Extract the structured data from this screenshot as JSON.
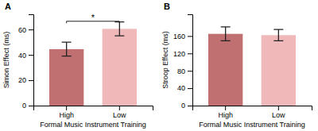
{
  "chart_data": [
    {
      "type": "bar",
      "title": "A",
      "categories": [
        "High",
        "Low"
      ],
      "values": [
        44.5,
        60.5
      ],
      "errors": [
        5.5,
        5.5
      ],
      "colors": [
        "#c07070",
        "#f0b8b8"
      ],
      "ylabel": "Simon Effect (ms)",
      "xlabel": "Formal Music Instrument Training",
      "ylim": [
        0,
        72
      ],
      "yticks": [
        0,
        20,
        40,
        60
      ],
      "annotations": [
        {
          "text": "*",
          "start": 0,
          "end": 1,
          "y": 66.5,
          "tick_height": 1.5
        }
      ]
    },
    {
      "type": "bar",
      "title": "B",
      "categories": [
        "High",
        "Low"
      ],
      "values": [
        165.0,
        162.0
      ],
      "errors": [
        16.0,
        13.0
      ],
      "colors": [
        "#c07070",
        "#f0b8b8"
      ],
      "ylabel": "Stroop Effect (ms)",
      "xlabel": "Formal Music Instrument Training",
      "ylim": [
        0,
        210
      ],
      "yticks": [
        0,
        40,
        80,
        120,
        160
      ]
    }
  ]
}
